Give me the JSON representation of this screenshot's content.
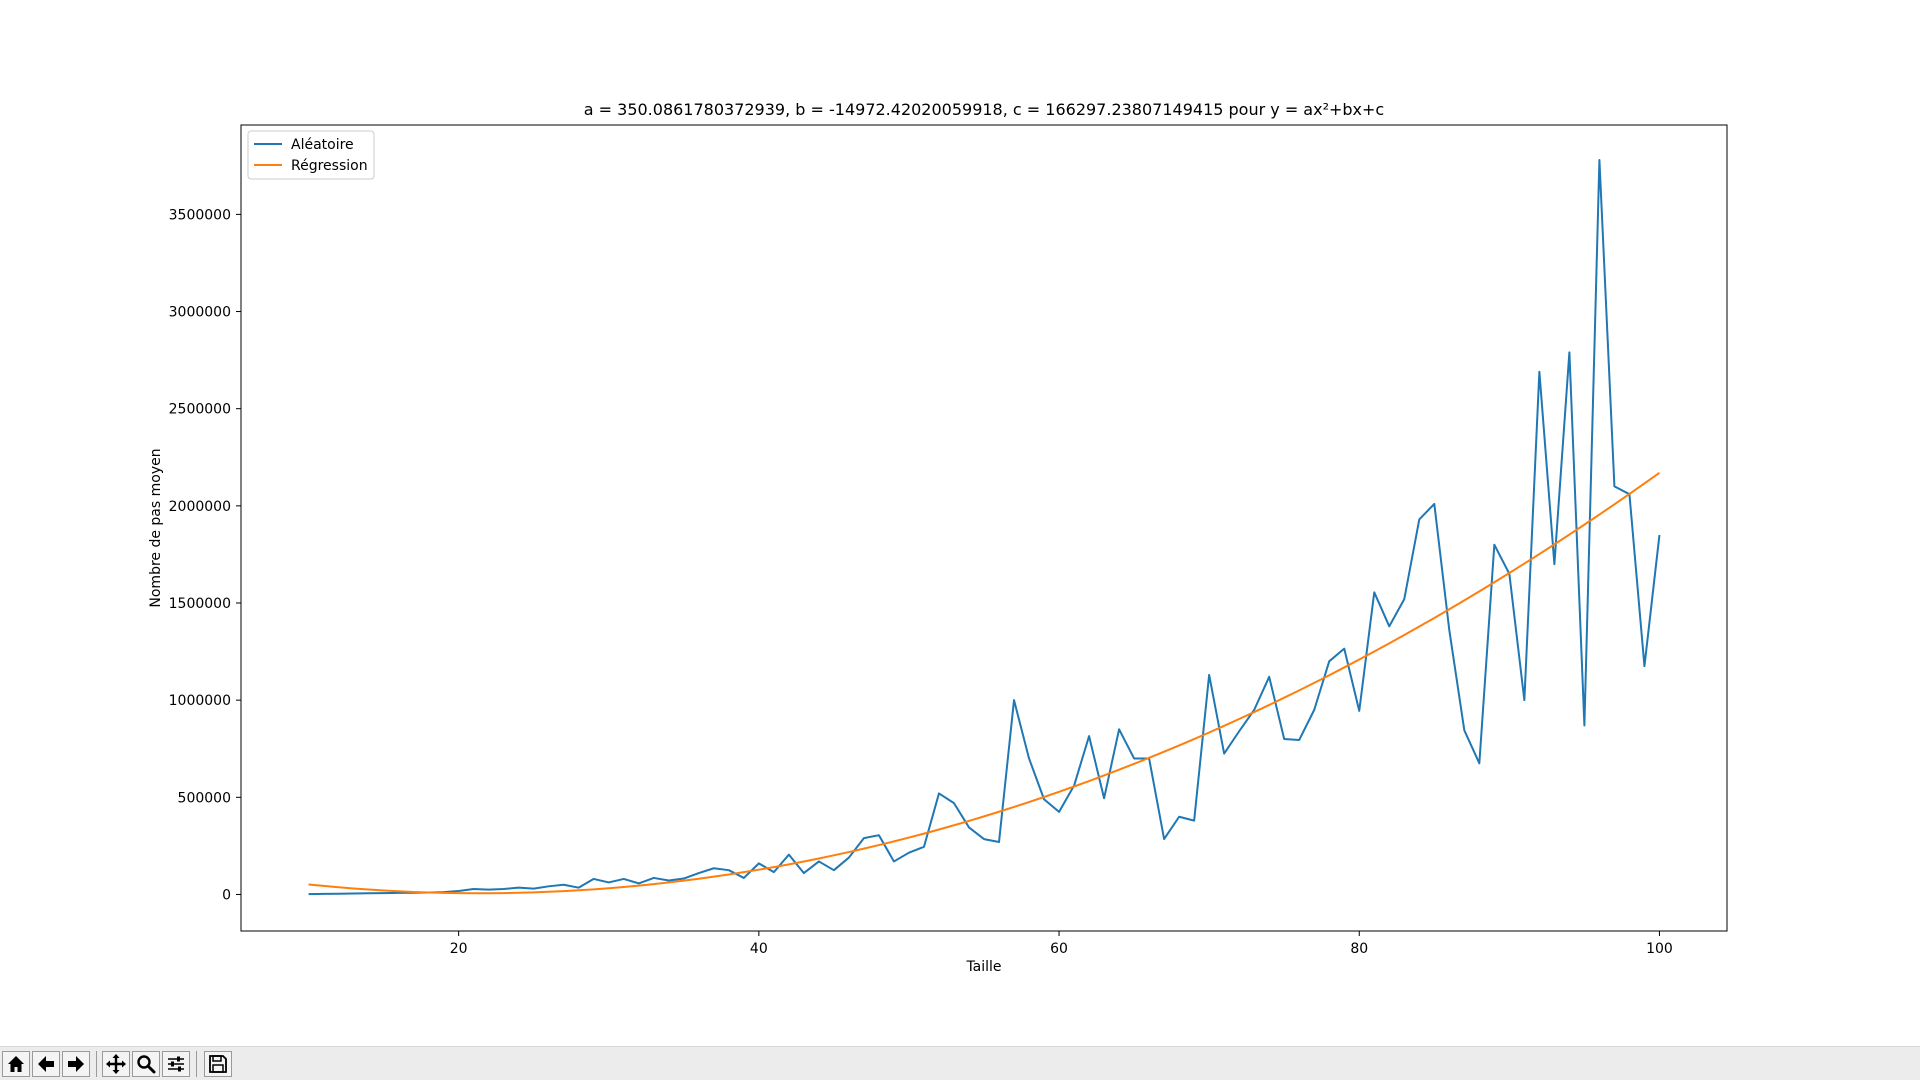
{
  "window": {
    "toolbar": {
      "buttons": [
        {
          "name": "home-button",
          "icon": "home-icon"
        },
        {
          "name": "back-button",
          "icon": "arrow-left-icon"
        },
        {
          "name": "forward-button",
          "icon": "arrow-right-icon"
        },
        {
          "name": "pan-button",
          "icon": "move-icon"
        },
        {
          "name": "zoom-button",
          "icon": "magnifier-icon"
        },
        {
          "name": "configure-subplots-button",
          "icon": "sliders-icon"
        },
        {
          "name": "save-button",
          "icon": "floppy-disk-icon"
        }
      ]
    }
  },
  "chart_data": {
    "type": "line",
    "title": "a = 350.0861780372939, b = -14972.42020059918, c = 166297.23807149415 pour y = ax²+bx+c",
    "xlabel": "Taille",
    "ylabel": "Nombre de pas moyen",
    "xlim": [
      5.5,
      104.5
    ],
    "ylim": [
      -188000,
      3960000
    ],
    "xticks": [
      20,
      40,
      60,
      80,
      100
    ],
    "yticks": [
      0,
      500000,
      1000000,
      1500000,
      2000000,
      2500000,
      3000000,
      3500000
    ],
    "grid": false,
    "legend_position": "upper-left",
    "series": [
      {
        "name": "Aléatoire",
        "color": "#1f77b4",
        "x": [
          10,
          11,
          12,
          13,
          14,
          15,
          16,
          17,
          18,
          19,
          20,
          21,
          22,
          23,
          24,
          25,
          26,
          27,
          28,
          29,
          30,
          31,
          32,
          33,
          34,
          35,
          36,
          37,
          38,
          39,
          40,
          41,
          42,
          43,
          44,
          45,
          46,
          47,
          48,
          49,
          50,
          51,
          52,
          53,
          54,
          55,
          56,
          57,
          58,
          59,
          60,
          61,
          62,
          63,
          64,
          65,
          66,
          67,
          68,
          69,
          70,
          71,
          72,
          73,
          74,
          75,
          76,
          77,
          78,
          79,
          80,
          81,
          82,
          83,
          84,
          85,
          86,
          87,
          88,
          89,
          90,
          91,
          92,
          93,
          94,
          95,
          96,
          97,
          98,
          99,
          100
        ],
        "values": [
          2000,
          3000,
          4000,
          5000,
          6000,
          7000,
          8000,
          9000,
          10000,
          12000,
          18000,
          28000,
          25000,
          28000,
          35000,
          30000,
          42000,
          50000,
          35000,
          80000,
          62000,
          80000,
          57000,
          85000,
          72000,
          82000,
          110000,
          135000,
          125000,
          85000,
          160000,
          115000,
          205000,
          110000,
          170000,
          125000,
          190000,
          290000,
          305000,
          170000,
          215000,
          245000,
          520000,
          470000,
          345000,
          285000,
          270000,
          1000000,
          700000,
          490000,
          425000,
          560000,
          815000,
          495000,
          850000,
          700000,
          700000,
          285000,
          400000,
          380000,
          1130000,
          725000,
          840000,
          950000,
          1120000,
          800000,
          795000,
          950000,
          1200000,
          1265000,
          945000,
          1555000,
          1380000,
          1520000,
          1930000,
          2010000,
          1360000,
          845000,
          675000,
          1800000,
          1650000,
          1000000,
          2690000,
          1700000,
          2790000,
          870000,
          3780000,
          2100000,
          2060000,
          1175000,
          1850000
        ]
      },
      {
        "name": "Régression",
        "color": "#ff7f0e",
        "equation": "y = 350.0861780372939x² - 14972.42020059918x + 166297.23807149415",
        "x_range": [
          10,
          100
        ]
      }
    ]
  }
}
